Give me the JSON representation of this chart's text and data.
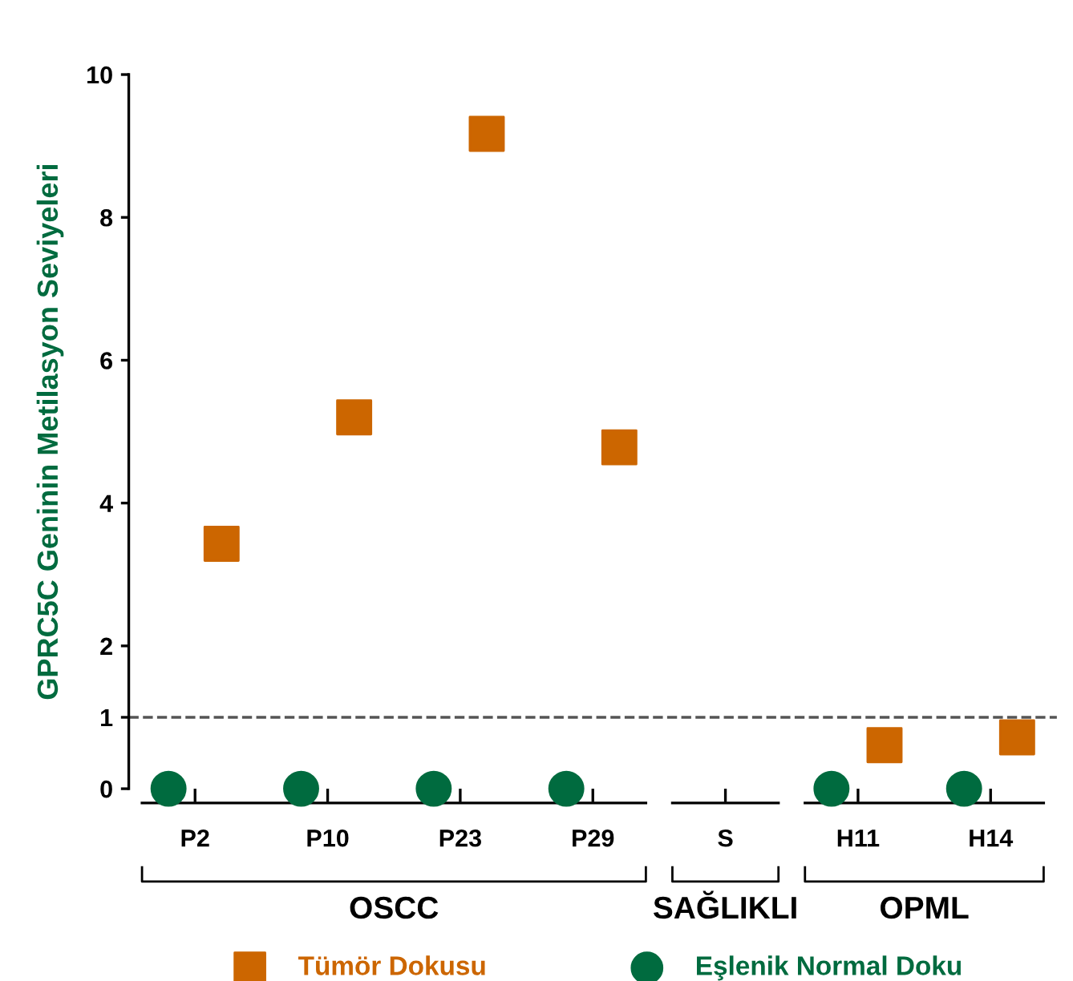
{
  "chart_data": {
    "type": "scatter",
    "categories": [
      "P2",
      "P10",
      "P23",
      "P29",
      "S",
      "H11",
      "H14"
    ],
    "series": [
      {
        "name": "Tümör Dokusu",
        "color": "#cc6600",
        "marker": "square",
        "values": [
          3.43,
          5.2,
          9.17,
          4.78,
          null,
          0.61,
          0.72
        ]
      },
      {
        "name": "Eşlenik Normal Doku",
        "color": "#006b3f",
        "marker": "circle",
        "values": [
          0,
          0,
          0,
          0,
          null,
          0,
          0
        ]
      }
    ],
    "ylabel": "GPRC5C Geninin Metilasyon Seviyeleri",
    "ylim": [
      0,
      10
    ],
    "yticks": [
      0,
      1,
      2,
      4,
      6,
      8,
      10
    ],
    "ref_lines": [
      {
        "axis": "y",
        "value": 1,
        "line_style": "dashed",
        "color": "#555555"
      }
    ],
    "annotations": [
      "OSCC",
      "SAĞLIKLI",
      "OPML"
    ],
    "legend": "bottom",
    "grid": false
  }
}
